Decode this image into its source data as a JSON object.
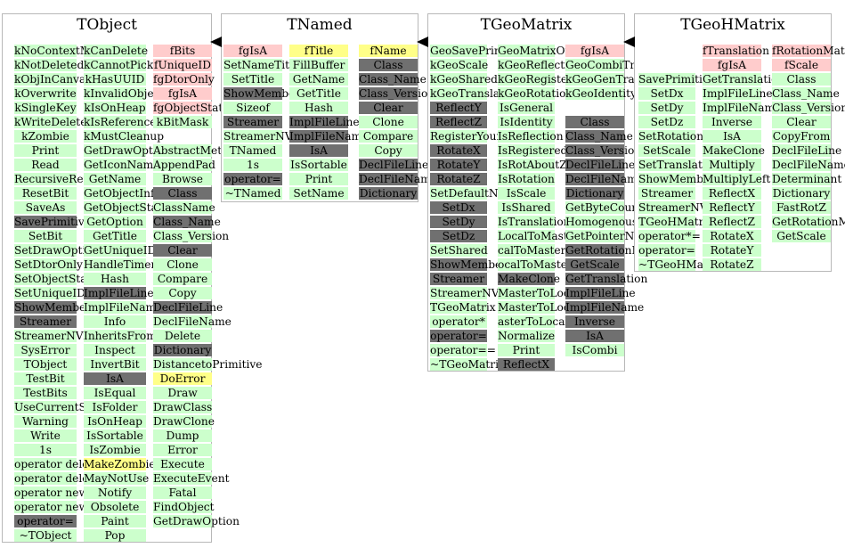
{
  "diagram": {
    "classes": [
      {
        "title": "TObject",
        "columns": [
          [
            [
              "kNoContextMenu",
              "g"
            ],
            [
              "kNotDeleted",
              "g"
            ],
            [
              "kObjInCanvas",
              "g"
            ],
            [
              "kOverwrite",
              "g"
            ],
            [
              "kSingleKey",
              "g"
            ],
            [
              "kWriteDelete",
              "g"
            ],
            [
              "kZombie",
              "g"
            ],
            [
              "Print",
              "g"
            ],
            [
              "Read",
              "g"
            ],
            [
              "RecursiveRemove",
              "g"
            ],
            [
              "ResetBit",
              "g"
            ],
            [
              "SaveAs",
              "g"
            ],
            [
              "SavePrimitive",
              "d"
            ],
            [
              "SetBit",
              "g"
            ],
            [
              "SetDrawOption",
              "g"
            ],
            [
              "SetDtorOnly",
              "g"
            ],
            [
              "SetObjectStat",
              "g"
            ],
            [
              "SetUniqueID",
              "g"
            ],
            [
              "ShowMembers",
              "d"
            ],
            [
              "Streamer",
              "d"
            ],
            [
              "StreamerNVirtual",
              "g"
            ],
            [
              "SysError",
              "g"
            ],
            [
              "TObject",
              "g"
            ],
            [
              "TestBit",
              "g"
            ],
            [
              "TestBits",
              "g"
            ],
            [
              "UseCurrentStyle",
              "g"
            ],
            [
              "Warning",
              "g"
            ],
            [
              "Write",
              "g"
            ],
            [
              "1s",
              "g"
            ],
            [
              "operator delete",
              "g"
            ],
            [
              "operator delete[]",
              "g"
            ],
            [
              "operator new",
              "g"
            ],
            [
              "operator new[]",
              "g"
            ],
            [
              "operator=",
              "d"
            ],
            [
              "~TObject",
              "g"
            ]
          ],
          [
            [
              "kCanDelete",
              "g"
            ],
            [
              "kCannotPick",
              "g"
            ],
            [
              "kHasUUID",
              "g"
            ],
            [
              "kInvalidObject",
              "g"
            ],
            [
              "kIsOnHeap",
              "g"
            ],
            [
              "kIsReferenced",
              "g"
            ],
            [
              "kMustCleanup",
              "g"
            ],
            [
              "GetDrawOption",
              "g"
            ],
            [
              "GetIconName",
              "g"
            ],
            [
              "GetName",
              "g"
            ],
            [
              "GetObjectInfo",
              "g"
            ],
            [
              "GetObjectStat",
              "g"
            ],
            [
              "GetOption",
              "g"
            ],
            [
              "GetTitle",
              "g"
            ],
            [
              "GetUniqueID",
              "g"
            ],
            [
              "HandleTimer",
              "g"
            ],
            [
              "Hash",
              "g"
            ],
            [
              "ImplFileLine",
              "d"
            ],
            [
              "ImplFileName",
              "g"
            ],
            [
              "Info",
              "g"
            ],
            [
              "InheritsFrom",
              "g"
            ],
            [
              "Inspect",
              "g"
            ],
            [
              "InvertBit",
              "g"
            ],
            [
              "IsA",
              "d"
            ],
            [
              "IsEqual",
              "g"
            ],
            [
              "IsFolder",
              "g"
            ],
            [
              "IsOnHeap",
              "g"
            ],
            [
              "IsSortable",
              "g"
            ],
            [
              "IsZombie",
              "g"
            ],
            [
              "MakeZombie",
              "y"
            ],
            [
              "MayNotUse",
              "g"
            ],
            [
              "Notify",
              "g"
            ],
            [
              "Obsolete",
              "g"
            ],
            [
              "Paint",
              "g"
            ],
            [
              "Pop",
              "g"
            ]
          ],
          [
            [
              "fBits",
              "p"
            ],
            [
              "fUniqueID",
              "p"
            ],
            [
              "fgDtorOnly",
              "p"
            ],
            [
              "fgIsA",
              "p"
            ],
            [
              "fgObjectStat",
              "p"
            ],
            [
              "kBitMask",
              "g"
            ],
            [
              "",
              ""
            ],
            [
              "AbstractMethod",
              "g"
            ],
            [
              "AppendPad",
              "g"
            ],
            [
              "Browse",
              "g"
            ],
            [
              "Class",
              "d"
            ],
            [
              "ClassName",
              "g"
            ],
            [
              "Class_Name",
              "d"
            ],
            [
              "Class_Version",
              "g"
            ],
            [
              "Clear",
              "d"
            ],
            [
              "Clone",
              "g"
            ],
            [
              "Compare",
              "g"
            ],
            [
              "Copy",
              "g"
            ],
            [
              "DeclFileLine",
              "d"
            ],
            [
              "DeclFileName",
              "g"
            ],
            [
              "Delete",
              "g"
            ],
            [
              "Dictionary",
              "d"
            ],
            [
              "DistancetoPrimitive",
              "g"
            ],
            [
              "DoError",
              "y"
            ],
            [
              "Draw",
              "g"
            ],
            [
              "DrawClass",
              "g"
            ],
            [
              "DrawClone",
              "g"
            ],
            [
              "Dump",
              "g"
            ],
            [
              "Error",
              "g"
            ],
            [
              "Execute",
              "g"
            ],
            [
              "ExecuteEvent",
              "g"
            ],
            [
              "Fatal",
              "g"
            ],
            [
              "FindObject",
              "g"
            ],
            [
              "GetDrawOption",
              "g"
            ]
          ]
        ]
      },
      {
        "title": "TNamed",
        "columns": [
          [
            [
              "fgIsA",
              "p"
            ],
            [
              "SetNameTitle",
              "g"
            ],
            [
              "SetTitle",
              "g"
            ],
            [
              "ShowMembers",
              "d"
            ],
            [
              "Sizeof",
              "g"
            ],
            [
              "Streamer",
              "d"
            ],
            [
              "StreamerNVirtual",
              "g"
            ],
            [
              "TNamed",
              "g"
            ],
            [
              "1s",
              "g"
            ],
            [
              "operator=",
              "d"
            ],
            [
              "~TNamed",
              "g"
            ]
          ],
          [
            [
              "fTitle",
              "y"
            ],
            [
              "FillBuffer",
              "g"
            ],
            [
              "GetName",
              "g"
            ],
            [
              "GetTitle",
              "g"
            ],
            [
              "Hash",
              "g"
            ],
            [
              "ImplFileLine",
              "d"
            ],
            [
              "ImplFileName",
              "d"
            ],
            [
              "IsA",
              "d"
            ],
            [
              "IsSortable",
              "g"
            ],
            [
              "Print",
              "g"
            ],
            [
              "SetName",
              "g"
            ]
          ],
          [
            [
              "fName",
              "y"
            ],
            [
              "Class",
              "d"
            ],
            [
              "Class_Name",
              "d"
            ],
            [
              "Class_Version",
              "d"
            ],
            [
              "Clear",
              "d"
            ],
            [
              "Clone",
              "g"
            ],
            [
              "Compare",
              "g"
            ],
            [
              "Copy",
              "g"
            ],
            [
              "DeclFileLine",
              "d"
            ],
            [
              "DeclFileName",
              "d"
            ],
            [
              "Dictionary",
              "d"
            ]
          ]
        ]
      },
      {
        "title": "TGeoMatrix",
        "columns": [
          [
            [
              "GeoSavePrimitive",
              "g"
            ],
            [
              "kGeoScale",
              "g"
            ],
            [
              "kGeoShared",
              "g"
            ],
            [
              "kGeoTranslation",
              "g"
            ],
            [
              "ReflectY",
              "d"
            ],
            [
              "ReflectZ",
              "d"
            ],
            [
              "RegisterYourself",
              "g"
            ],
            [
              "RotateX",
              "d"
            ],
            [
              "RotateY",
              "d"
            ],
            [
              "RotateZ",
              "d"
            ],
            [
              "SetDefaultName",
              "g"
            ],
            [
              "SetDx",
              "d"
            ],
            [
              "SetDy",
              "d"
            ],
            [
              "SetDz",
              "d"
            ],
            [
              "SetShared",
              "g"
            ],
            [
              "ShowMembers",
              "d"
            ],
            [
              "Streamer",
              "d"
            ],
            [
              "StreamerNVirtual",
              "g"
            ],
            [
              "TGeoMatrix",
              "g"
            ],
            [
              "operator*",
              "g"
            ],
            [
              "operator=",
              "d"
            ],
            [
              "operator==",
              "g"
            ],
            [
              "~TGeoMatrix",
              "g"
            ]
          ],
          [
            [
              "GeoMatrixOwned",
              "g"
            ],
            [
              "kGeoReflection",
              "g"
            ],
            [
              "kGeoRegistered",
              "g"
            ],
            [
              "kGeoRotation",
              "g"
            ],
            [
              "IsGeneral",
              "g"
            ],
            [
              "IsIdentity",
              "g"
            ],
            [
              "IsReflection",
              "g"
            ],
            [
              "IsRegistered",
              "g"
            ],
            [
              "IsRotAboutZ",
              "g"
            ],
            [
              "IsRotation",
              "g"
            ],
            [
              "IsScale",
              "g"
            ],
            [
              "IsShared",
              "g"
            ],
            [
              "IsTranslation",
              "g"
            ],
            [
              "LocalToMaster",
              "g"
            ],
            [
              "calToMasterBomb",
              "g"
            ],
            [
              "ocalToMasterVect",
              "g"
            ],
            [
              "MakeClone",
              "d"
            ],
            [
              "MasterToLocal",
              "g"
            ],
            [
              "MasterToLocalBomb",
              "g"
            ],
            [
              "asterToLocalVect",
              "g"
            ],
            [
              "Normalize",
              "g"
            ],
            [
              "Print",
              "g"
            ],
            [
              "ReflectX",
              "d"
            ]
          ],
          [
            [
              "fgIsA",
              "p"
            ],
            [
              "GeoCombiTrans",
              "g"
            ],
            [
              "kGeoGenTrans",
              "g"
            ],
            [
              "kGeoIdentity",
              "g"
            ],
            [
              "",
              ""
            ],
            [
              "Class",
              "d"
            ],
            [
              "Class_Name",
              "d"
            ],
            [
              "Class_Version",
              "d"
            ],
            [
              "DeclFileLine",
              "d"
            ],
            [
              "DeclFileName",
              "d"
            ],
            [
              "Dictionary",
              "d"
            ],
            [
              "GetByteCount",
              "g"
            ],
            [
              "HomogenousMatrix",
              "g"
            ],
            [
              "GetPointerName",
              "g"
            ],
            [
              "GetRotationMatrix",
              "d"
            ],
            [
              "GetScale",
              "d"
            ],
            [
              "GetTranslation",
              "d"
            ],
            [
              "ImplFileLine",
              "d"
            ],
            [
              "ImplFileName",
              "d"
            ],
            [
              "Inverse",
              "d"
            ],
            [
              "IsA",
              "d"
            ],
            [
              "IsCombi",
              "g"
            ]
          ]
        ]
      },
      {
        "title": "TGeoHMatrix",
        "columns": [
          [
            [
              "",
              ""
            ],
            [
              "",
              ""
            ],
            [
              "SavePrimitive",
              "g"
            ],
            [
              "SetDx",
              "g"
            ],
            [
              "SetDy",
              "g"
            ],
            [
              "SetDz",
              "g"
            ],
            [
              "SetRotation",
              "g"
            ],
            [
              "SetScale",
              "g"
            ],
            [
              "SetTranslation",
              "g"
            ],
            [
              "ShowMembers",
              "g"
            ],
            [
              "Streamer",
              "g"
            ],
            [
              "StreamerNVirtual",
              "g"
            ],
            [
              "TGeoHMatrix",
              "g"
            ],
            [
              "operator*=",
              "g"
            ],
            [
              "operator=",
              "g"
            ],
            [
              "~TGeoHMatrix",
              "g"
            ]
          ],
          [
            [
              "fTranslation",
              "p"
            ],
            [
              "fgIsA",
              "p"
            ],
            [
              "GetTranslation",
              "g"
            ],
            [
              "ImplFileLine",
              "g"
            ],
            [
              "ImplFileName",
              "g"
            ],
            [
              "Inverse",
              "g"
            ],
            [
              "IsA",
              "g"
            ],
            [
              "MakeClone",
              "g"
            ],
            [
              "Multiply",
              "g"
            ],
            [
              "MultiplyLeft",
              "g"
            ],
            [
              "ReflectX",
              "g"
            ],
            [
              "ReflectY",
              "g"
            ],
            [
              "ReflectZ",
              "g"
            ],
            [
              "RotateX",
              "g"
            ],
            [
              "RotateY",
              "g"
            ],
            [
              "RotateZ",
              "g"
            ]
          ],
          [
            [
              "fRotationMatrix",
              "p"
            ],
            [
              "fScale",
              "p"
            ],
            [
              "Class",
              "g"
            ],
            [
              "Class_Name",
              "g"
            ],
            [
              "Class_Version",
              "g"
            ],
            [
              "Clear",
              "g"
            ],
            [
              "CopyFrom",
              "g"
            ],
            [
              "DeclFileLine",
              "g"
            ],
            [
              "DeclFileName",
              "g"
            ],
            [
              "Determinant",
              "g"
            ],
            [
              "Dictionary",
              "g"
            ],
            [
              "FastRotZ",
              "g"
            ],
            [
              "GetRotationMatrix",
              "g"
            ],
            [
              "GetScale",
              "g"
            ]
          ]
        ]
      }
    ]
  }
}
